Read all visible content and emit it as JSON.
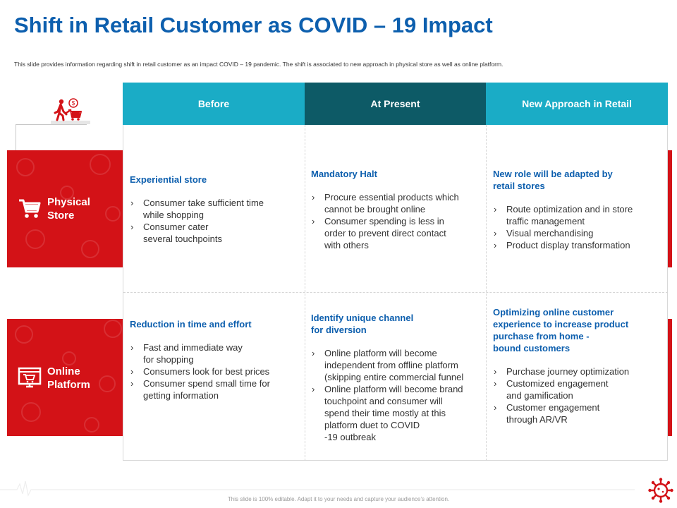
{
  "slide": {
    "title": "Shift in Retail Customer as COVID – 19 Impact",
    "subtitle": "This slide provides information regarding shift in retail customer as an impact COVID – 19 pandemic. The shift is associated to new approach in physical store as well as online platform.",
    "footer": "This slide is 100% editable. Adapt it to your needs and capture your audience’s attention."
  },
  "colors": {
    "brand_red": "#d31217",
    "title_blue": "#0d5fae",
    "header_teal": "#1aacc6",
    "header_dark": "#0d5a66"
  },
  "icons": {
    "top": "person-shopping-icon",
    "physical": "shopping-cart-icon",
    "online": "online-store-icon",
    "logo": "virus-icon"
  },
  "columns": [
    {
      "label": "Before"
    },
    {
      "label": "At Present"
    },
    {
      "label": "New Approach  in Retail"
    }
  ],
  "rows": [
    {
      "label": [
        "Physical",
        "Store"
      ],
      "cells": [
        {
          "heading": [
            "Experiential store"
          ],
          "bullets": [
            [
              "Consumer take sufficient time",
              "while shopping"
            ],
            [
              "Consumer cater",
              "several touchpoints"
            ]
          ]
        },
        {
          "heading": [
            "Mandatory Halt"
          ],
          "bullets": [
            [
              "Procure essential products which",
              "cannot be brought online"
            ],
            [
              "Consumer spending is less in",
              "order to prevent direct contact",
              "with others"
            ]
          ]
        },
        {
          "heading": [
            "New role will be adapted by",
            "retail stores"
          ],
          "bullets": [
            [
              "Route optimization and in store",
              "traffic management"
            ],
            [
              "Visual merchandising"
            ],
            [
              "Product display transformation"
            ]
          ]
        }
      ]
    },
    {
      "label": [
        "Online",
        "Platform"
      ],
      "cells": [
        {
          "heading": [
            "Reduction in time and effort"
          ],
          "bullets": [
            [
              "Fast and immediate way",
              "for shopping"
            ],
            [
              "Consumers look for best prices"
            ],
            [
              "Consumer spend small time for",
              "getting information"
            ]
          ]
        },
        {
          "heading": [
            "Identify unique channel",
            "for diversion"
          ],
          "bullets": [
            [
              "Online platform will become",
              "independent from offline platform",
              "(skipping entire commercial funnel"
            ],
            [
              "Online platform will become brand",
              "touchpoint and consumer will",
              "spend their time mostly at this",
              "platform duet to COVID",
              "-19 outbreak"
            ]
          ]
        },
        {
          "heading": [
            "Optimizing online customer",
            "experience to increase product",
            "purchase from home -",
            "bound customers"
          ],
          "bullets": [
            [
              "Purchase journey optimization"
            ],
            [
              "Customized engagement",
              "and gamification"
            ],
            [
              "Customer engagement",
              "through AR/VR"
            ]
          ]
        }
      ]
    }
  ]
}
